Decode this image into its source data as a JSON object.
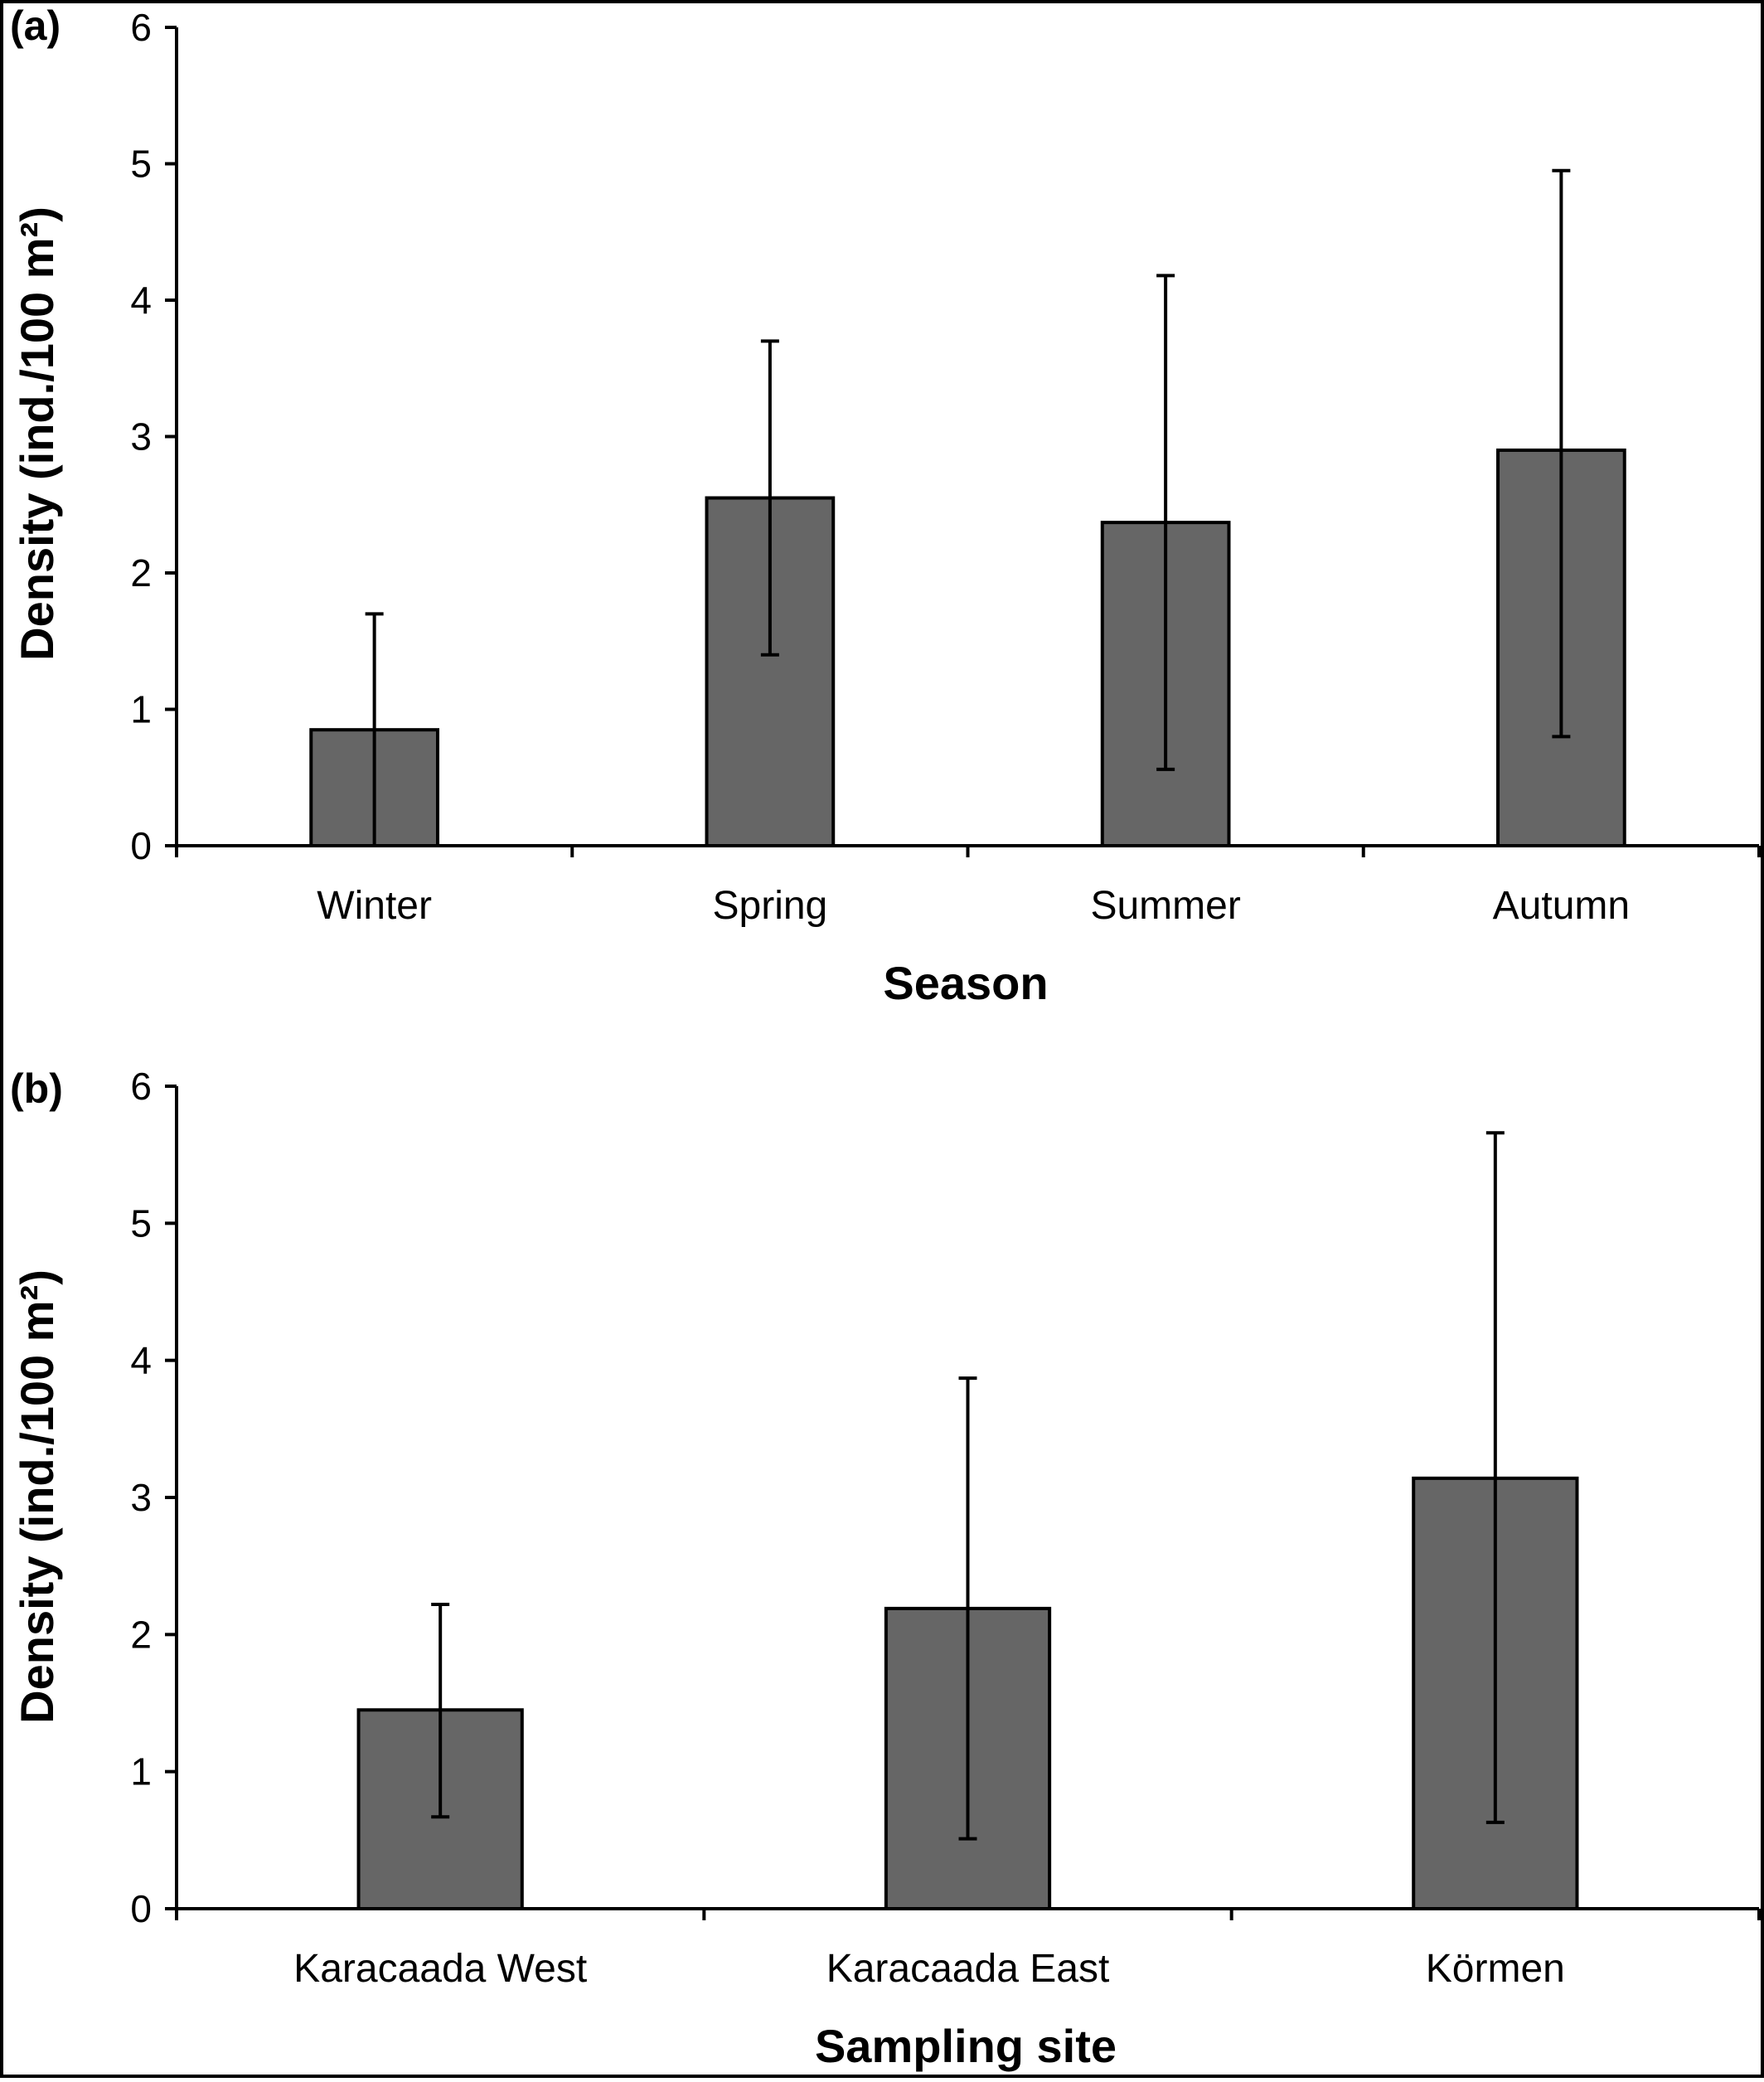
{
  "colors": {
    "bar_fill": "#666666",
    "frame": "#000000",
    "background": "#ffffff"
  },
  "chart_data": [
    {
      "type": "bar",
      "panel_label": "(a)",
      "categories": [
        "Winter",
        "Spring",
        "Summer",
        "Autumn"
      ],
      "values": [
        0.85,
        2.55,
        2.37,
        2.9
      ],
      "error_upper": [
        1.7,
        3.7,
        4.18,
        4.95
      ],
      "error_lower": [
        0.0,
        1.4,
        0.56,
        0.8
      ],
      "xlabel": "Season",
      "ylabel": "Density (ind./100 m²)",
      "ylim": [
        0,
        6
      ],
      "yticks": [
        "0",
        "1",
        "2",
        "3",
        "4",
        "5",
        "6"
      ],
      "grid": false,
      "legend": "none"
    },
    {
      "type": "bar",
      "panel_label": "(b)",
      "categories": [
        "Karacaada West",
        "Karacaada East",
        "Körmen"
      ],
      "values": [
        1.45,
        2.19,
        3.14
      ],
      "error_upper": [
        2.22,
        3.87,
        5.66
      ],
      "error_lower": [
        0.67,
        0.51,
        0.63
      ],
      "xlabel": "Sampling site",
      "ylabel": "Density (ind./100 m²)",
      "ylim": [
        0,
        6
      ],
      "yticks": [
        "0",
        "1",
        "2",
        "3",
        "4",
        "5",
        "6"
      ],
      "grid": false,
      "legend": "none"
    }
  ]
}
